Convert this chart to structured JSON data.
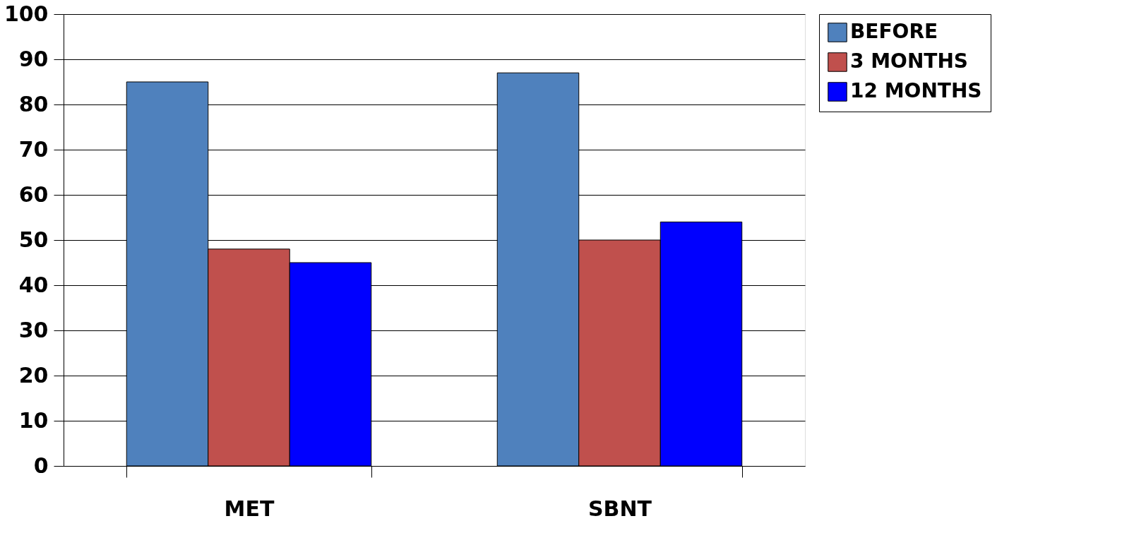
{
  "chart_data": {
    "type": "bar",
    "categories": [
      "MET",
      "SBNT"
    ],
    "series": [
      {
        "name": "BEFORE",
        "color": "#4f81bd",
        "values": [
          85,
          87
        ]
      },
      {
        "name": "3 MONTHS",
        "color": "#c0504d",
        "values": [
          48,
          50
        ]
      },
      {
        "name": "12 MONTHS",
        "color": "#0000ff",
        "values": [
          45,
          54
        ]
      }
    ],
    "ylim": [
      0,
      100
    ],
    "yticks": [
      0,
      10,
      20,
      30,
      40,
      50,
      60,
      70,
      80,
      90,
      100
    ],
    "grid": "y",
    "legend": "right"
  }
}
